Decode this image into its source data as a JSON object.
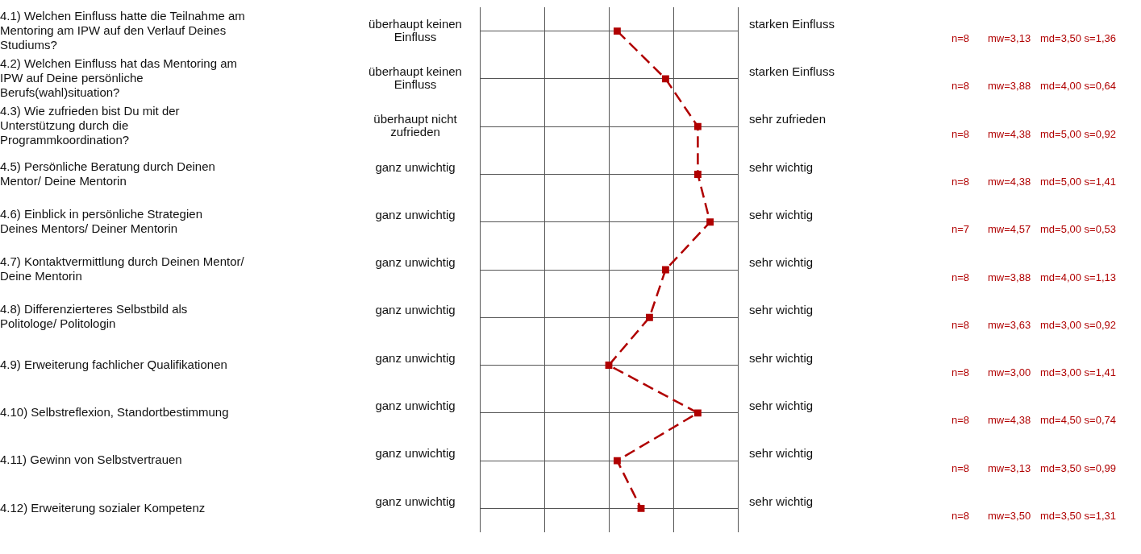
{
  "chart_data": {
    "type": "line",
    "orientation": "horizontal",
    "categories": [
      "4.1) Welchen Einfluss hatte die Teilnahme am Mentoring am IPW auf den Verlauf Deines Studiums?",
      "4.2) Welchen Einfluss hat das Mentoring am IPW auf Deine persönliche Berufs(wahl)situation?",
      "4.3) Wie zufrieden bist Du mit der Unterstützung durch die Programmkoordination?",
      "4.5) Persönliche Beratung durch Deinen Mentor/ Deine Mentorin",
      "4.6) Einblick in persönliche Strategien Deines Mentors/ Deiner Mentorin",
      "4.7) Kontaktvermittlung durch Deinen Mentor/ Deine Mentorin",
      "4.8) Differenzierteres Selbstbild als Politologe/ Politologin",
      "4.9) Erweiterung fachlicher Qualifikationen",
      "4.10) Selbstreflexion, Standortbestimmung",
      "4.11) Gewinn von Selbstvertrauen",
      "4.12) Erweiterung sozialer Kompetenz"
    ],
    "series": [
      {
        "color": "#b00000",
        "values": [
          3.13,
          3.88,
          4.38,
          4.38,
          4.57,
          3.88,
          3.63,
          3.0,
          4.38,
          3.13,
          3.5
        ],
        "value_labels": [
          "mw=3,13",
          "mw=3,88",
          "mw=4,38",
          "mw=4,38",
          "mw=4,57",
          "mw=3,88",
          "mw=3,63",
          "mw=3,00",
          "mw=4,38",
          "mw=3,13",
          "mw=3,50"
        ]
      }
    ],
    "xlim": [
      1,
      5
    ],
    "xticks": [
      {
        "value": 1,
        "label": null
      },
      {
        "value": 2,
        "label": null
      },
      {
        "value": 3,
        "label": null
      },
      {
        "value": 4,
        "label": null
      },
      {
        "value": 5,
        "label": null
      }
    ],
    "tick_labels": "y",
    "grid": true,
    "legend": false,
    "marker": "square",
    "line_style": "dashed",
    "annotations": [
      "überhaupt keinen Einfluss",
      "starken Einfluss",
      "n=8",
      "md=3,50 s=1,36",
      "überhaupt keinen Einfluss",
      "starken Einfluss",
      "n=8",
      "md=4,00 s=0,64",
      "überhaupt nicht zufrieden",
      "sehr zufrieden",
      "n=8",
      "md=5,00 s=0,92",
      "ganz unwichtig",
      "sehr wichtig",
      "n=8",
      "md=5,00 s=1,41",
      "ganz unwichtig",
      "sehr wichtig",
      "n=7",
      "md=5,00 s=0,53",
      "ganz unwichtig",
      "sehr wichtig",
      "n=8",
      "md=4,00 s=1,13",
      "ganz unwichtig",
      "sehr wichtig",
      "n=8",
      "md=3,00 s=0,92",
      "ganz unwichtig",
      "sehr wichtig",
      "n=8",
      "md=3,00 s=1,41",
      "ganz unwichtig",
      "sehr wichtig",
      "n=8",
      "md=4,50 s=0,74",
      "ganz unwichtig",
      "sehr wichtig",
      "n=8",
      "md=3,50 s=0,99",
      "ganz unwichtig",
      "sehr wichtig",
      "n=8",
      "md=3,50 s=1,31"
    ]
  }
}
